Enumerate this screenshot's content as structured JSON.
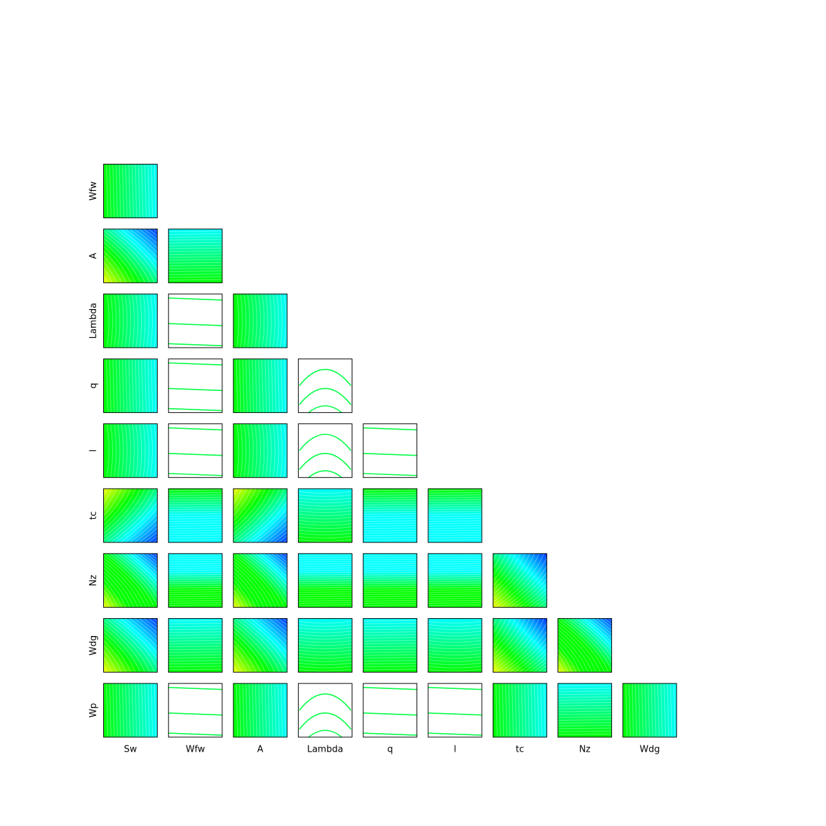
{
  "chart_data": {
    "type": "contour",
    "grid": "lower-triangular",
    "grid_size": 9,
    "x_variables": [
      "Sw",
      "Wfw",
      "A",
      "Lambda",
      "q",
      "l",
      "tc",
      "Nz",
      "Wdg"
    ],
    "y_variables": [
      "Wfw",
      "A",
      "Lambda",
      "q",
      "l",
      "tc",
      "Nz",
      "Wdg",
      "Wp"
    ],
    "tick_labels": "none",
    "colormap": "gist_rainbow",
    "colormap_stops": [
      "#ffff00",
      "#00ff00",
      "#00ffff",
      "#0000ff"
    ],
    "contour_stroke": "#00ff55",
    "axis_frame_color": "#000000"
  }
}
